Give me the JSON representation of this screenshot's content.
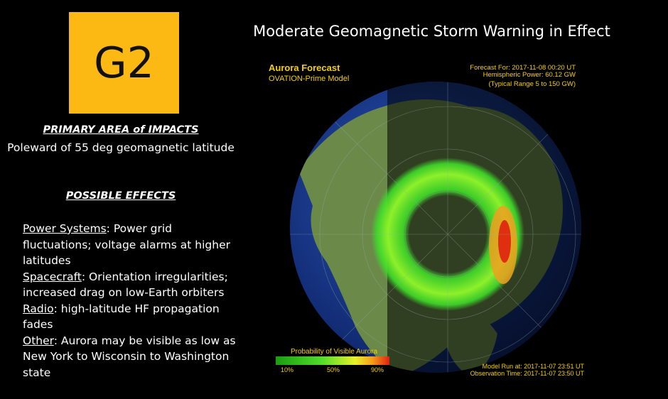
{
  "badge": "G2",
  "title": "Moderate Geomagnetic Storm Warning in Effect",
  "primary": {
    "heading": "PRIMARY AREA of IMPACTS",
    "text": "Poleward of 55 deg geomagnetic latitude"
  },
  "effects": {
    "heading": "POSSIBLE EFFECTS",
    "items": [
      {
        "term": "Power Systems",
        "text": ": Power grid fluctuations; voltage alarms at higher latitudes"
      },
      {
        "term": "Spacecraft",
        "text": ": Orientation irregularities; increased drag on low-Earth orbiters"
      },
      {
        "term": "Radio",
        "text": ": high-latitude HF propagation fades"
      },
      {
        "term": "Other",
        "text": ": Aurora may be visible as low as New York to Wisconsin to Washington state"
      }
    ]
  },
  "map": {
    "title": "Aurora Forecast",
    "model": "OVATION-Prime Model",
    "info": [
      "Forecast For: 2017-11-08 00:20 UT",
      "Hemispheric Power: 60.12 GW",
      "(Typical Range 5 to 150 GW)"
    ],
    "colorbar": {
      "title": "Probability of Visible Aurora",
      "ticks": [
        "10%",
        "50%",
        "90%"
      ]
    },
    "footer": [
      "Model Run at: 2017-11-07 23:51 UT",
      "Observation Time: 2017-11-07 23:50 UT"
    ]
  }
}
